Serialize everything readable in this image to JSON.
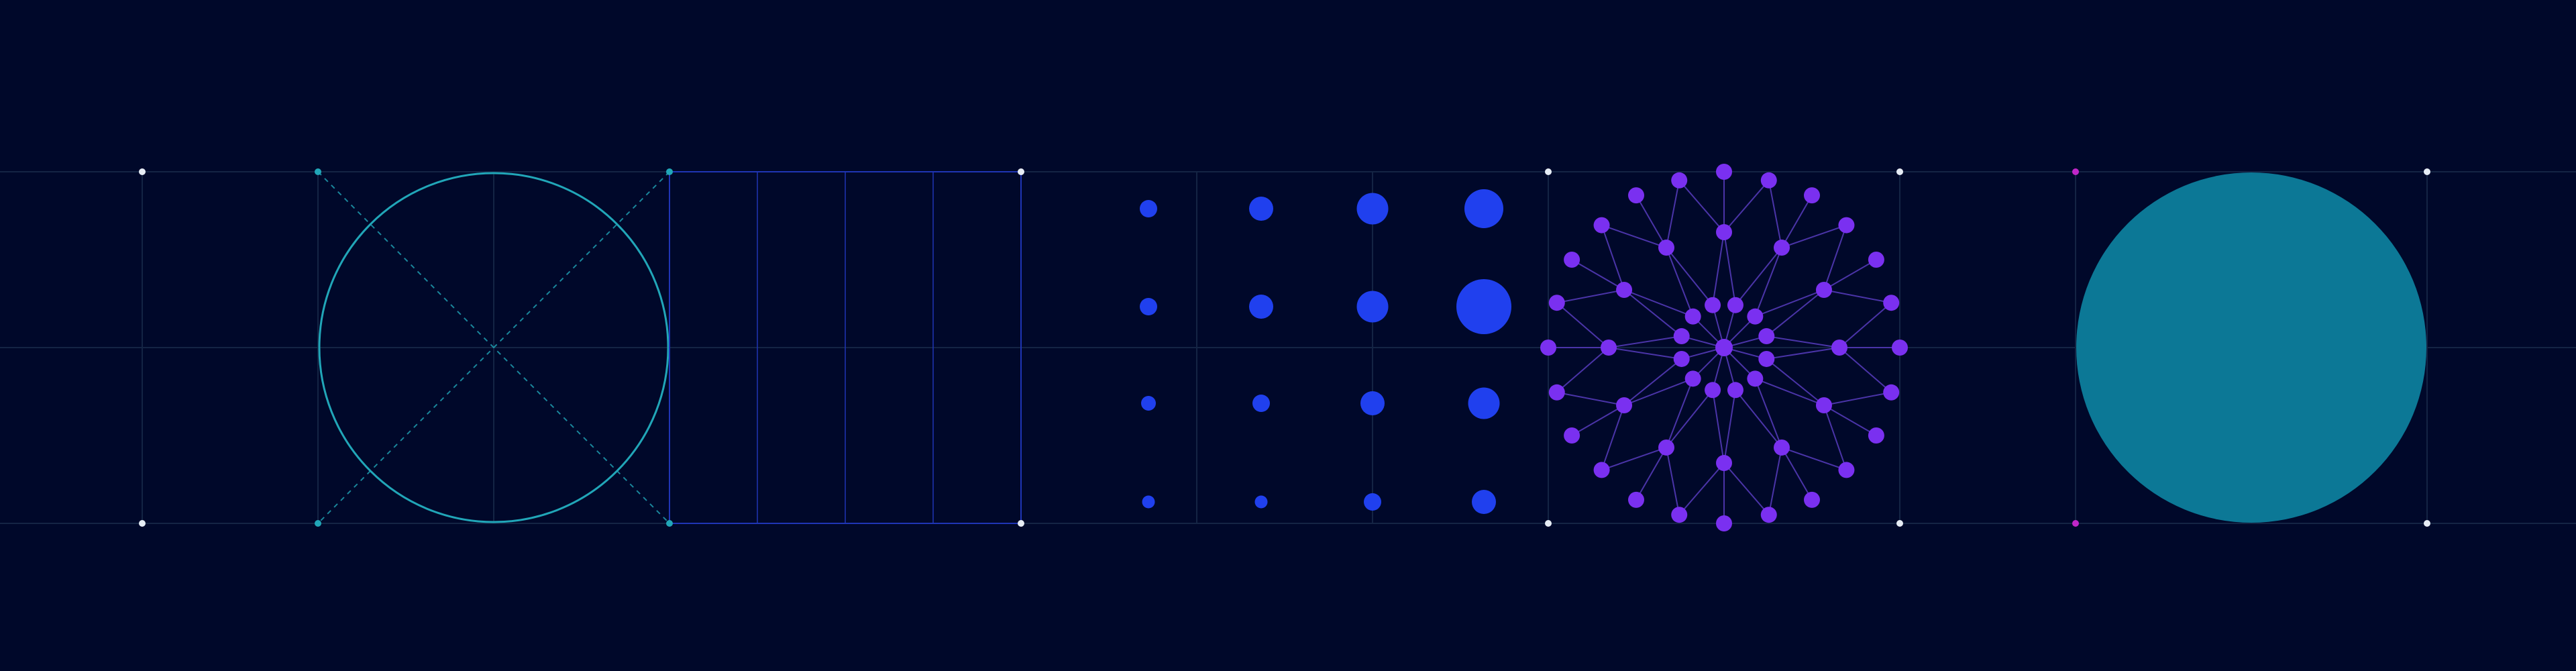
{
  "colors": {
    "background": "#00082a",
    "grid": "#142444",
    "teal": "#21a6b8",
    "teal_fill": "#0c7896",
    "blue": "#2040ee",
    "blue_line": "#1f35b5",
    "purple": "#7a30f0",
    "purple_line": "#4a34a8",
    "node_white": "#e6ecf5",
    "magenta": "#c026c8"
  },
  "panels": [
    {
      "id": "circle-construction",
      "shape": "circle-with-diagonals",
      "style": "outline"
    },
    {
      "id": "vertical-division",
      "shape": "rectangle-divided",
      "divisions": 4
    },
    {
      "id": "dot-scale",
      "shape": "dot-grid",
      "columns": 4,
      "rows": 4,
      "size_levels": [
        [
          2,
          3,
          4,
          5
        ],
        [
          2,
          3,
          4,
          6
        ],
        [
          1,
          2,
          3,
          4
        ],
        [
          0,
          0,
          2,
          3
        ]
      ]
    },
    {
      "id": "radial-network",
      "shape": "radial-network",
      "rings": 4,
      "spokes": 12
    },
    {
      "id": "solid-circle",
      "shape": "circle",
      "style": "filled"
    }
  ]
}
